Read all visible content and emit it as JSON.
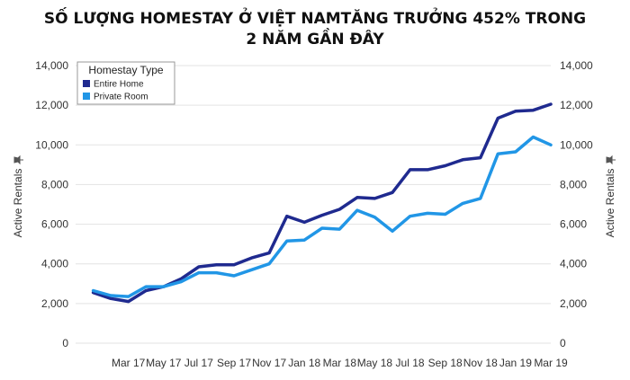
{
  "chart_data": {
    "type": "line",
    "title_line1": "SỐ LƯỢNG HOMESTAY Ở VIỆT NAMTĂNG TRƯỞNG 452% TRONG",
    "title_line2": "2 NĂM GẦN ĐÂY",
    "ylabel": "Active Rentals",
    "ylabel_right": "Active Rentals",
    "ylim": [
      0,
      14000
    ],
    "yticks": [
      "0",
      "2,000",
      "4,000",
      "6,000",
      "8,000",
      "10,000",
      "12,000",
      "14,000"
    ],
    "ytick_values": [
      0,
      2000,
      4000,
      6000,
      8000,
      10000,
      12000,
      14000
    ],
    "x_tick_labels": [
      "Mar 17",
      "May 17",
      "Jul 17",
      "Sep 17",
      "Nov 17",
      "Jan 18",
      "Mar 18",
      "May 18",
      "Jul 18",
      "Sep 18",
      "Nov 18",
      "Jan 19",
      "Mar 19"
    ],
    "x_tick_positions": [
      3,
      5,
      7,
      9,
      11,
      13,
      15,
      17,
      19,
      21,
      23,
      25,
      27
    ],
    "x_range": [
      0,
      27
    ],
    "legend": {
      "title": "Homestay Type",
      "placement": "top-left"
    },
    "series": [
      {
        "name": "Entire Home",
        "color": "#1f2a8f",
        "values": [
          2550,
          2250,
          2100,
          2650,
          2850,
          3250,
          3850,
          3950,
          3950,
          4300,
          4550,
          6400,
          6100,
          6450,
          6750,
          7350,
          7300,
          7600,
          8750,
          8750,
          8950,
          9250,
          9350,
          11350,
          11700,
          11750,
          12050
        ]
      },
      {
        "name": "Private Room",
        "color": "#2196e6",
        "values": [
          2650,
          2400,
          2350,
          2850,
          2850,
          3100,
          3550,
          3550,
          3400,
          3700,
          4000,
          5150,
          5200,
          5800,
          5750,
          6700,
          6350,
          5650,
          6400,
          6550,
          6500,
          7050,
          7300,
          9550,
          9650,
          10400,
          10000
        ]
      }
    ],
    "x": [
      1,
      2,
      3,
      4,
      5,
      6,
      7,
      8,
      9,
      10,
      11,
      12,
      13,
      14,
      15,
      16,
      17,
      18,
      19,
      20,
      21,
      22,
      23,
      24,
      25,
      26,
      27
    ],
    "grid": true
  }
}
